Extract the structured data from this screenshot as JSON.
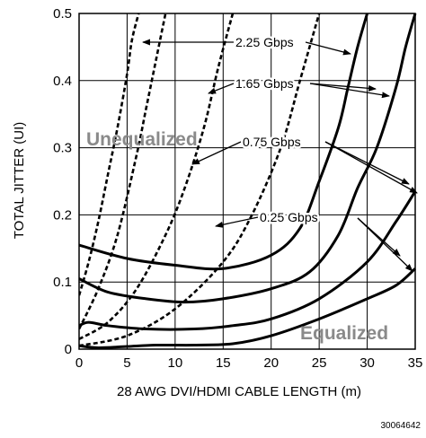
{
  "chart_data": {
    "type": "line",
    "xlabel": "28 AWG DVI/HDMI CABLE LENGTH (m)",
    "ylabel": "TOTAL JITTER (UI)",
    "xlim": [
      0,
      35
    ],
    "ylim": [
      0,
      0.5
    ],
    "x_ticks": [
      0,
      5,
      10,
      15,
      20,
      25,
      30,
      35
    ],
    "y_ticks": [
      0,
      0.1,
      0.2,
      0.3,
      0.4,
      0.5
    ],
    "x_tick_labels": [
      "0",
      "5",
      "10",
      "15",
      "20",
      "25",
      "30",
      "35"
    ],
    "y_tick_labels": [
      "0",
      "0.1",
      "0.2",
      "0.3",
      "0.4",
      "0.5"
    ],
    "grid": true,
    "figure_id": "30064642",
    "annotations": {
      "unequalized": "Unequalized",
      "equalized": "Equalized",
      "gbps_225": "2.25 Gbps",
      "gbps_165": "1.65 Gbps",
      "gbps_075": "0.75 Gbps",
      "gbps_025": "0.25 Gbps"
    },
    "series": [
      {
        "group": "unequalized",
        "rate": "2.25 Gbps",
        "style": "dashed",
        "x": [
          0,
          1,
          2,
          3,
          4,
          5,
          5.5,
          6.2
        ],
        "y": [
          0.08,
          0.13,
          0.19,
          0.26,
          0.33,
          0.41,
          0.46,
          0.5
        ]
      },
      {
        "group": "unequalized",
        "rate": "1.65 Gbps",
        "style": "dashed",
        "x": [
          0,
          2,
          4,
          6,
          7,
          8,
          9
        ],
        "y": [
          0.03,
          0.09,
          0.17,
          0.29,
          0.36,
          0.43,
          0.5
        ]
      },
      {
        "group": "unequalized",
        "rate": "0.75 Gbps",
        "style": "dashed",
        "x": [
          0,
          3,
          6,
          9,
          11,
          13,
          14.5,
          16
        ],
        "y": [
          0.015,
          0.04,
          0.09,
          0.17,
          0.24,
          0.33,
          0.42,
          0.5
        ]
      },
      {
        "group": "unequalized",
        "rate": "0.25 Gbps",
        "style": "dashed",
        "x": [
          0,
          5,
          10,
          15,
          18,
          21,
          23,
          25
        ],
        "y": [
          0.005,
          0.02,
          0.06,
          0.13,
          0.2,
          0.3,
          0.4,
          0.5
        ]
      },
      {
        "group": "equalized",
        "rate": "2.25 Gbps",
        "style": "solid",
        "x": [
          0,
          5,
          10,
          15,
          20,
          23,
          25,
          27,
          28,
          29,
          30
        ],
        "y": [
          0.155,
          0.135,
          0.125,
          0.12,
          0.14,
          0.18,
          0.25,
          0.33,
          0.39,
          0.45,
          0.5
        ]
      },
      {
        "group": "equalized",
        "rate": "1.65 Gbps",
        "style": "solid",
        "x": [
          0,
          3,
          7,
          11,
          15,
          20,
          24,
          27,
          29,
          31,
          33,
          34,
          35
        ],
        "y": [
          0.105,
          0.085,
          0.075,
          0.07,
          0.075,
          0.09,
          0.115,
          0.17,
          0.24,
          0.3,
          0.39,
          0.45,
          0.5
        ]
      },
      {
        "group": "equalized",
        "rate": "0.75 Gbps",
        "style": "solid",
        "x": [
          0,
          1,
          3,
          7,
          12,
          16,
          20,
          25,
          30,
          33,
          35
        ],
        "y": [
          0.035,
          0.04,
          0.035,
          0.03,
          0.03,
          0.035,
          0.045,
          0.075,
          0.13,
          0.19,
          0.235
        ]
      },
      {
        "group": "equalized",
        "rate": "0.25 Gbps",
        "style": "solid",
        "x": [
          0,
          2,
          5,
          8,
          12,
          16,
          20,
          25,
          30,
          33,
          35
        ],
        "y": [
          0.005,
          0.002,
          0.004,
          0.006,
          0.006,
          0.008,
          0.02,
          0.045,
          0.075,
          0.095,
          0.12
        ]
      }
    ]
  }
}
